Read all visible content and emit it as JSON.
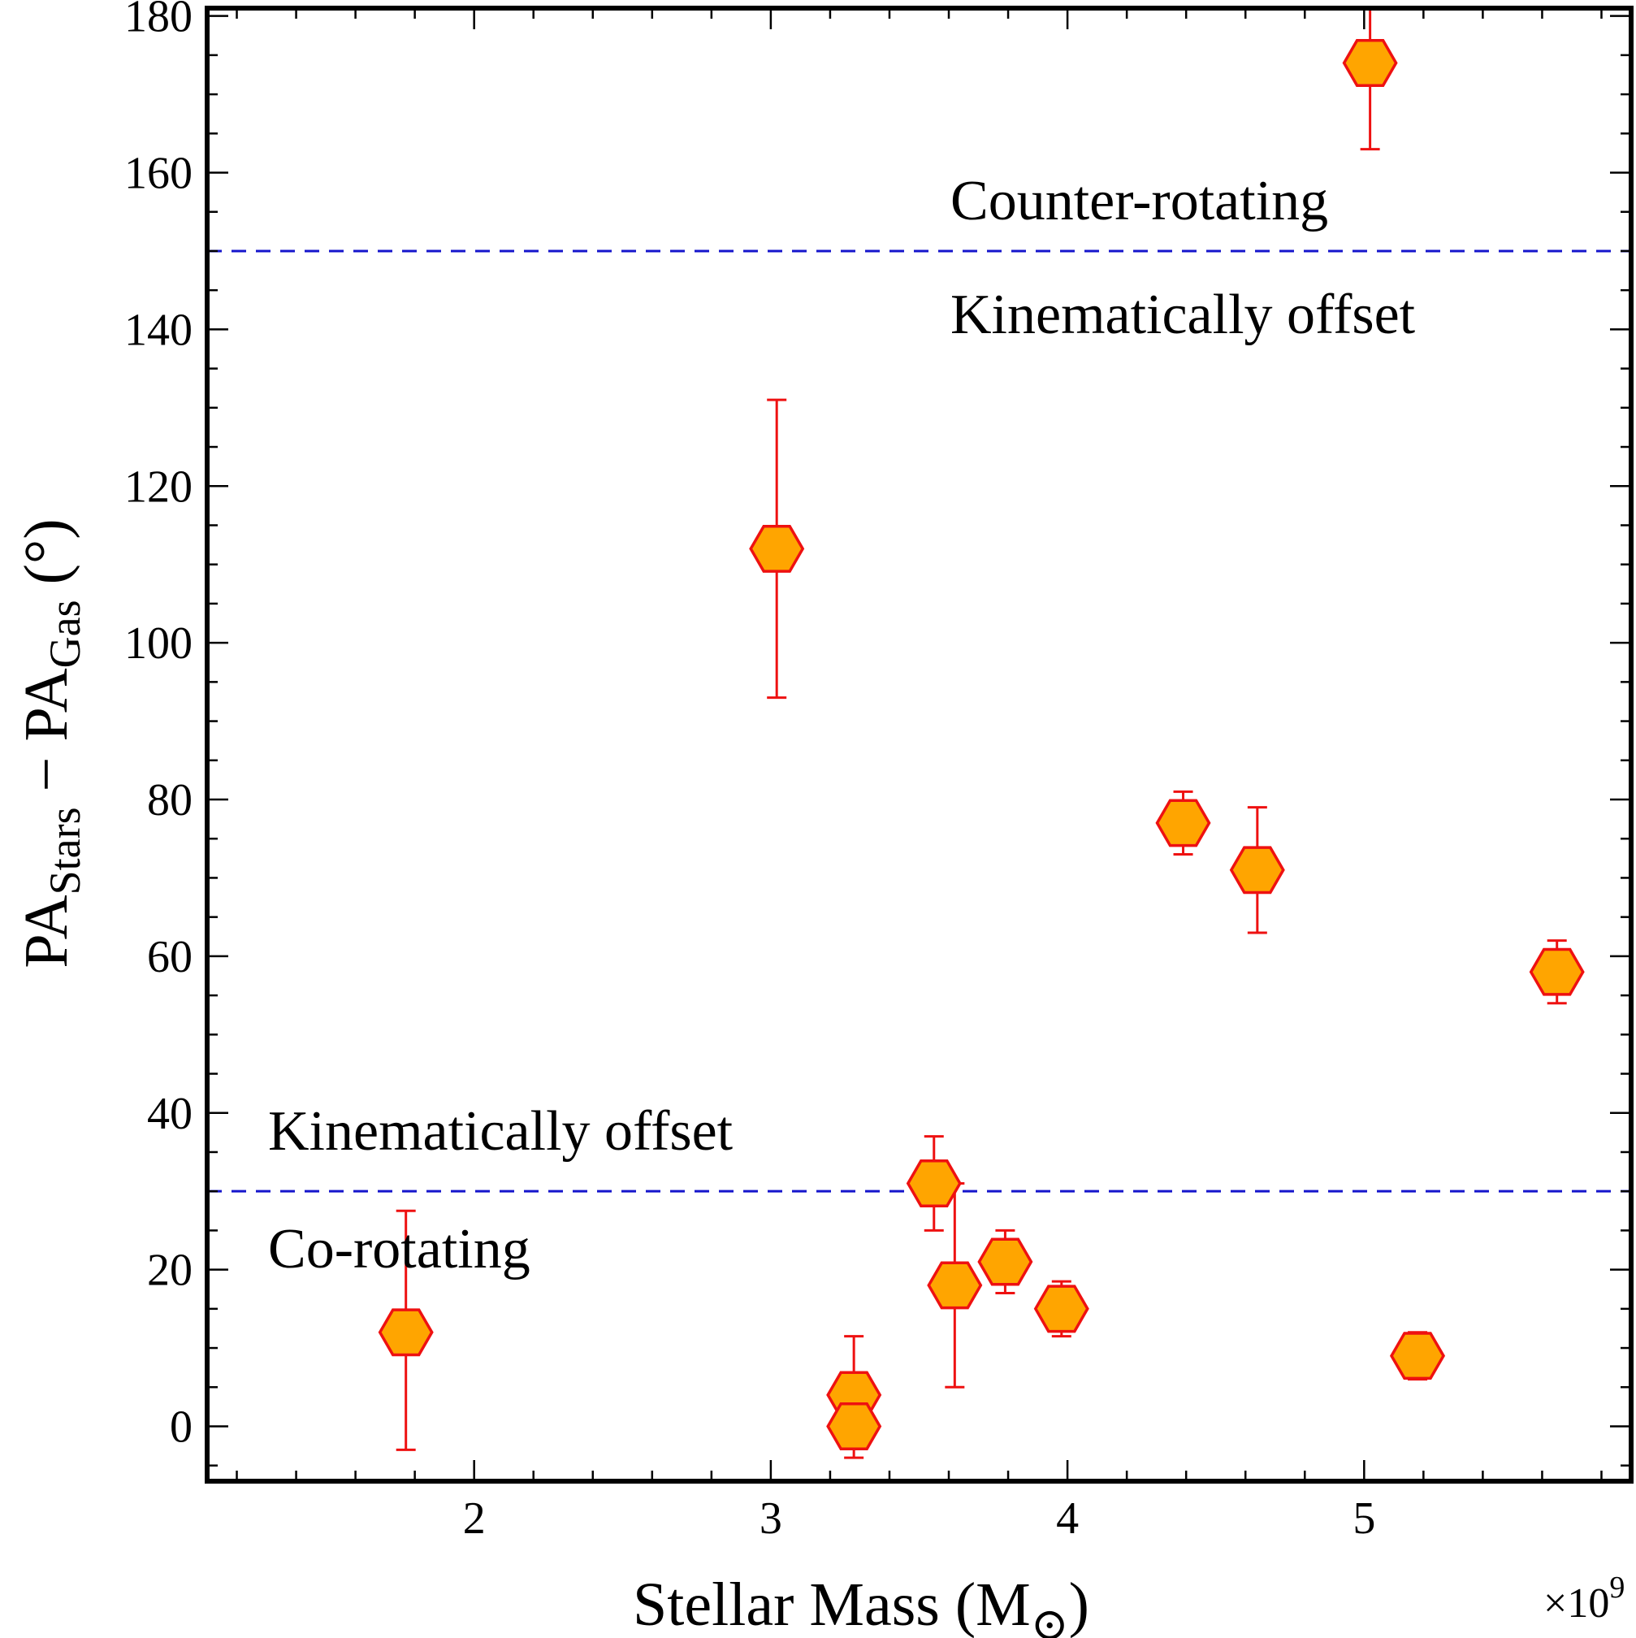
{
  "chart_data": {
    "type": "scatter",
    "title": "",
    "xlabel": "Stellar Mass (M⊙)",
    "ylabel": "PA_Stars − PA_Gas (°)",
    "x_multiplier": "×10^9",
    "xlim": [
      1.1,
      5.9
    ],
    "ylim": [
      -7,
      181
    ],
    "xticks": [
      2,
      3,
      4,
      5
    ],
    "yticks": [
      0,
      20,
      40,
      60,
      80,
      100,
      120,
      140,
      160,
      180
    ],
    "grid": false,
    "marker_color": "#FFA500",
    "marker_edge_color": "#EE1111",
    "errorbar_color": "#EE1111",
    "threshold_color": "#1515CC",
    "points": [
      {
        "x": 1.77,
        "y": 12,
        "y_low": -3,
        "y_high": 27.5
      },
      {
        "x": 3.02,
        "y": 112,
        "y_low": 93,
        "y_high": 131
      },
      {
        "x": 3.28,
        "y": 4,
        "y_low": 0,
        "y_high": 11.5
      },
      {
        "x": 3.28,
        "y": 0,
        "y_low": -4,
        "y_high": 2
      },
      {
        "x": 3.55,
        "y": 31,
        "y_low": 25,
        "y_high": 37
      },
      {
        "x": 3.62,
        "y": 18,
        "y_low": 5,
        "y_high": 31
      },
      {
        "x": 3.79,
        "y": 21,
        "y_low": 17,
        "y_high": 25
      },
      {
        "x": 3.98,
        "y": 15,
        "y_low": 11.5,
        "y_high": 18.5
      },
      {
        "x": 4.39,
        "y": 77,
        "y_low": 73,
        "y_high": 81
      },
      {
        "x": 4.64,
        "y": 71,
        "y_low": 63,
        "y_high": 79
      },
      {
        "x": 5.02,
        "y": 174,
        "y_low": 163,
        "y_high": 182
      },
      {
        "x": 5.18,
        "y": 9,
        "y_low": 6,
        "y_high": 12
      },
      {
        "x": 5.65,
        "y": 58,
        "y_low": 54,
        "y_high": 62
      }
    ],
    "thresholds": [
      150,
      30
    ],
    "annotations": [
      {
        "text": "Counter-rotating"
      },
      {
        "text": "Kinematically offset"
      },
      {
        "text": "Kinematically offset"
      },
      {
        "text": "Co-rotating"
      }
    ]
  }
}
